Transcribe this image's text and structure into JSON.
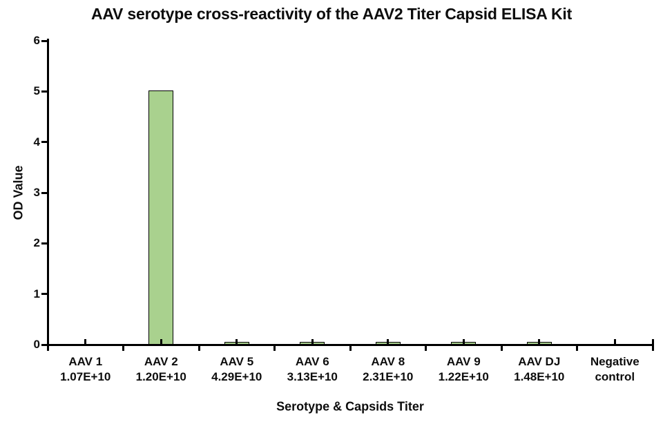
{
  "chart_data": {
    "type": "bar",
    "title": "AAV serotype cross-reactivity of the AAV2 Titer Capsid ELISA Kit",
    "xlabel": "Serotype & Capsids Titer",
    "ylabel": "OD Value",
    "ylim": [
      0,
      6
    ],
    "ytick_step": 1,
    "ytick_labels": [
      "0",
      "1",
      "2",
      "3",
      "4",
      "5",
      "6"
    ],
    "grid": false,
    "legend": false,
    "bar_fill_color": "#A9D18E",
    "bar_border_color": "#000000",
    "axis_color": "#000000",
    "categories": [
      "AAV 1",
      "AAV 2",
      "AAV 5",
      "AAV 6",
      "AAV 8",
      "AAV 9",
      "AAV DJ",
      "Negative control"
    ],
    "titers": [
      "1.07E+10",
      "1.20E+10",
      "4.29E+10",
      "3.13E+10",
      "2.31E+10",
      "1.22E+10",
      "1.48E+10",
      ""
    ],
    "values": [
      0.01,
      5.0,
      0.04,
      0.04,
      0.04,
      0.04,
      0.04,
      0.01
    ]
  }
}
